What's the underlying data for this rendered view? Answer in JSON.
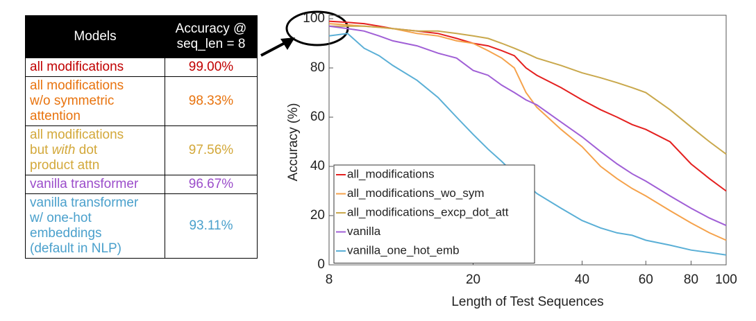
{
  "table": {
    "header": {
      "model": "Models",
      "accuracy": [
        "Accuracy @",
        "seq_len = 8"
      ]
    },
    "rows": [
      {
        "model": [
          [
            "all modifications"
          ]
        ],
        "accuracy": "99.00%",
        "color": "#c00000"
      },
      {
        "model": [
          [
            "all modifications"
          ],
          [
            "w/o symmetric"
          ],
          [
            "attention"
          ]
        ],
        "accuracy": "98.33%",
        "color": "#e8730e"
      },
      {
        "model": [
          [
            "all modifications"
          ],
          [
            "but",
            "with",
            "dot"
          ],
          [
            "product attn"
          ]
        ],
        "accuracy": "97.56%",
        "color": "#d3a83a"
      },
      {
        "model": [
          [
            "vanilla transformer"
          ]
        ],
        "accuracy": "96.67%",
        "color": "#9b4dca"
      },
      {
        "model": [
          [
            "vanilla transformer"
          ],
          [
            "w/ one-hot"
          ],
          [
            "embeddings"
          ],
          [
            "(default in NLP)"
          ]
        ],
        "accuracy": "93.11%",
        "color": "#4aa0cc"
      }
    ]
  },
  "chart_data": {
    "type": "line",
    "xlabel": "Length of Test Sequences",
    "ylabel": "Accuracy (%)",
    "x": [
      8,
      9,
      10,
      11,
      12,
      14,
      16,
      18,
      20,
      22,
      24,
      26,
      28,
      30,
      35,
      40,
      45,
      50,
      55,
      60,
      70,
      80,
      90,
      100
    ],
    "xlim": [
      8,
      100
    ],
    "xticks": [
      8,
      20,
      40,
      60,
      80,
      100
    ],
    "xscale": "log",
    "ylim": [
      0,
      100
    ],
    "yticks": [
      0,
      20,
      40,
      60,
      80,
      100
    ],
    "legend": "lower left",
    "series": [
      {
        "name": "all_modifications",
        "color": "#e4201f",
        "values": [
          99,
          98.5,
          98,
          97,
          96,
          95,
          94,
          92,
          90,
          89,
          87,
          85,
          80,
          77,
          72,
          67,
          63,
          60,
          57,
          55,
          50,
          41,
          35,
          30
        ]
      },
      {
        "name": "all_modifications_wo_sym",
        "color": "#f5a24b",
        "values": [
          98,
          97.5,
          97,
          96.5,
          96,
          94,
          93,
          91,
          90,
          87,
          84,
          80,
          70,
          64,
          55,
          48,
          40,
          35,
          31,
          28,
          22,
          17,
          13,
          10
        ]
      },
      {
        "name": "all_modifications_excp_dot_att",
        "color": "#c9a84c",
        "values": [
          97,
          97,
          97,
          96.5,
          96,
          95,
          95,
          94,
          93,
          92,
          90,
          88,
          86,
          84,
          81,
          78,
          76,
          74,
          72,
          70,
          63,
          56,
          50,
          45
        ]
      },
      {
        "name": "vanilla",
        "color": "#a05fd6",
        "values": [
          97,
          96,
          95,
          93,
          91,
          89,
          86,
          84,
          79,
          77,
          73,
          70,
          67,
          65,
          58,
          52,
          46,
          41,
          37,
          34,
          28,
          23,
          19,
          16
        ]
      },
      {
        "name": "vanilla_one_hot_emb",
        "color": "#5aafd6",
        "values": [
          93,
          94,
          88,
          85,
          81,
          75,
          68,
          60,
          53,
          47,
          42,
          37,
          33,
          29,
          23,
          18,
          15,
          13,
          12,
          10,
          8,
          6,
          5,
          4
        ]
      }
    ]
  }
}
